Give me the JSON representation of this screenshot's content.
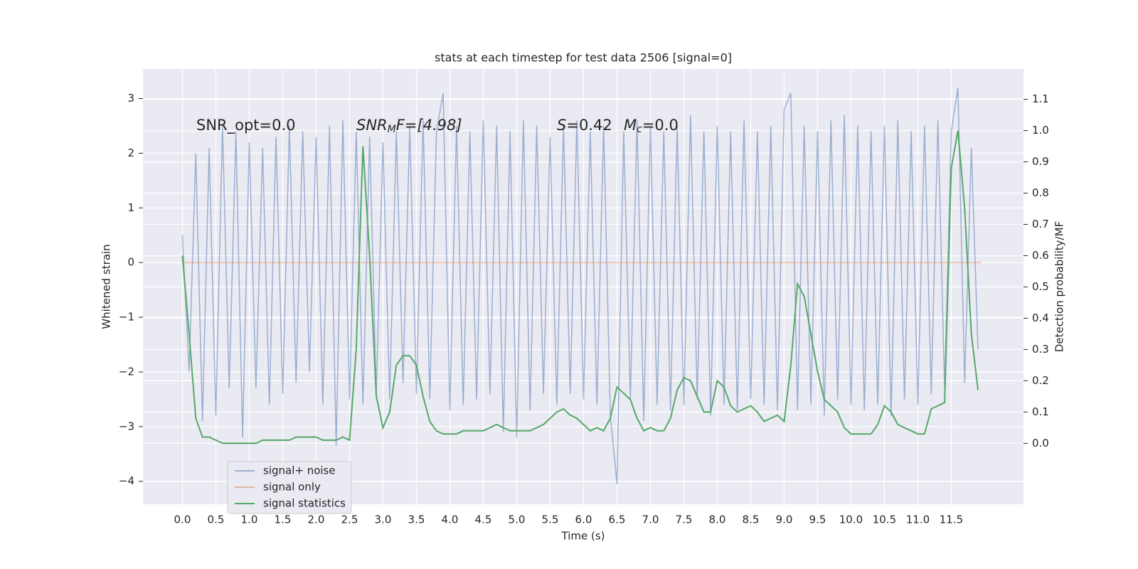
{
  "chart_data": {
    "type": "line",
    "title": "stats at each timestep for test data 2506 [signal=0]",
    "x_label": "Time (s)",
    "y_label": "Whitened strain",
    "y2_label": "Detection probability/MF",
    "annotations": [
      {
        "text": "SNR_opt=0.0"
      },
      {
        "main": "SNR",
        "sub": "M",
        "tail": "F=[4.98]"
      },
      {
        "main": "S",
        "tail": "=0.42"
      },
      {
        "main": "M",
        "sub": "c",
        "tail": "=0.0"
      }
    ],
    "grid": true,
    "legend": "lower left",
    "xlim": [
      -0.59,
      12.58
    ],
    "ylim": [
      -4.42,
      3.54
    ],
    "y2lim": [
      -0.195,
      1.197
    ],
    "xticks": [
      {
        "value": 0,
        "label": "0.0"
      },
      0.5,
      {
        "value": 1,
        "label": "1.0"
      },
      1.5,
      {
        "value": 2,
        "label": "2.0"
      },
      2.5,
      {
        "value": 3,
        "label": "3.0"
      },
      3.5,
      {
        "value": 4,
        "label": "4.0"
      },
      4.5,
      {
        "value": 5,
        "label": "5.0"
      },
      5.5,
      {
        "value": 6,
        "label": "6.0"
      },
      6.5,
      {
        "value": 7,
        "label": "7.0"
      },
      7.5,
      {
        "value": 8,
        "label": "8.0"
      },
      8.5,
      {
        "value": 9,
        "label": "9.0"
      },
      9.5,
      {
        "value": 10,
        "label": "10.0"
      },
      10.5,
      {
        "value": 11,
        "label": "11.0"
      },
      11.5
    ],
    "yticks": [
      {
        "value": -4,
        "label": "−4"
      },
      {
        "value": -3,
        "label": "−3"
      },
      {
        "value": -2,
        "label": "−2"
      },
      {
        "value": -1,
        "label": "−1"
      },
      0,
      1,
      2,
      3
    ],
    "y2ticks": [
      {
        "value": 0,
        "label": "0.0"
      },
      0.1,
      0.2,
      0.3,
      0.4,
      0.5,
      0.6,
      0.7,
      0.8,
      0.9,
      {
        "value": 1,
        "label": "1.0"
      },
      1.1
    ],
    "x": [
      0.0,
      0.1,
      0.2,
      0.3,
      0.4,
      0.5,
      0.6,
      0.7,
      0.8,
      0.9,
      1.0,
      1.1,
      1.2,
      1.3,
      1.4,
      1.5,
      1.6,
      1.7,
      1.8,
      1.9,
      2.0,
      2.1,
      2.2,
      2.3,
      2.4,
      2.5,
      2.6,
      2.7,
      2.8,
      2.9,
      3.0,
      3.1,
      3.2,
      3.3,
      3.4,
      3.5,
      3.6,
      3.7,
      3.8,
      3.9,
      4.0,
      4.1,
      4.2,
      4.3,
      4.4,
      4.5,
      4.6,
      4.7,
      4.8,
      4.9,
      5.0,
      5.1,
      5.2,
      5.3,
      5.4,
      5.5,
      5.6,
      5.7,
      5.8,
      5.9,
      6.0,
      6.1,
      6.2,
      6.3,
      6.4,
      6.5,
      6.6,
      6.7,
      6.8,
      6.9,
      7.0,
      7.1,
      7.2,
      7.3,
      7.4,
      7.5,
      7.6,
      7.7,
      7.8,
      7.9,
      8.0,
      8.1,
      8.2,
      8.3,
      8.4,
      8.5,
      8.6,
      8.7,
      8.8,
      8.9,
      9.0,
      9.1,
      9.2,
      9.3,
      9.4,
      9.5,
      9.6,
      9.7,
      9.8,
      9.9,
      10.0,
      10.1,
      10.2,
      10.3,
      10.4,
      10.5,
      10.6,
      10.7,
      10.8,
      10.9,
      11.0,
      11.1,
      11.2,
      11.3,
      11.4,
      11.5,
      11.6,
      11.7,
      11.8,
      11.9
    ],
    "series": [
      {
        "name": "signal+ noise",
        "color": "#4c72b0",
        "opacity": 0.5,
        "values": [
          0.5,
          -2.0,
          2.0,
          -2.9,
          2.1,
          -2.8,
          2.5,
          -2.3,
          2.4,
          -3.2,
          2.2,
          -2.3,
          2.1,
          -2.6,
          2.3,
          -2.4,
          2.5,
          -2.2,
          2.4,
          -2.0,
          2.3,
          -2.6,
          2.5,
          -3.35,
          2.6,
          -2.5,
          2.4,
          -2.6,
          2.3,
          -2.4,
          2.2,
          -2.5,
          2.4,
          -2.2,
          2.5,
          -2.4,
          2.6,
          -2.5,
          2.4,
          3.1,
          -2.7,
          2.5,
          -2.6,
          2.4,
          -2.5,
          2.6,
          -2.4,
          2.5,
          -3.1,
          2.4,
          -3.2,
          2.6,
          -2.7,
          2.5,
          -2.4,
          2.3,
          -2.6,
          2.5,
          -2.4,
          2.6,
          -2.5,
          2.4,
          -2.6,
          2.5,
          -2.8,
          -4.05,
          2.4,
          -2.5,
          2.6,
          -2.9,
          2.5,
          -2.6,
          2.4,
          -2.7,
          2.5,
          -2.6,
          2.7,
          -2.5,
          2.4,
          -2.8,
          2.5,
          -2.6,
          2.4,
          -2.7,
          2.6,
          -2.5,
          2.4,
          -2.6,
          2.5,
          -2.7,
          2.8,
          3.1,
          -2.7,
          2.5,
          -2.6,
          2.4,
          -2.8,
          2.6,
          -2.5,
          2.7,
          -2.6,
          2.5,
          -2.7,
          2.4,
          -2.6,
          2.5,
          -2.8,
          2.6,
          -2.5,
          2.4,
          -2.6,
          2.5,
          -2.4,
          2.6,
          -2.3,
          2.4,
          3.2,
          -2.2,
          2.1,
          -1.6
        ]
      },
      {
        "name": "signal only",
        "color": "#dd8452",
        "opacity": 0.5,
        "x": [
          0.0,
          11.95
        ],
        "values": [
          0,
          0
        ]
      },
      {
        "name": "signal statistics",
        "color": "#55a868",
        "opacity": 1,
        "axis": "y2",
        "values": [
          0.6,
          0.35,
          0.08,
          0.02,
          0.02,
          0.01,
          0.0,
          0.0,
          0.0,
          0.0,
          0.0,
          0.0,
          0.01,
          0.01,
          0.01,
          0.01,
          0.01,
          0.02,
          0.02,
          0.02,
          0.02,
          0.01,
          0.01,
          0.01,
          0.02,
          0.01,
          0.3,
          0.95,
          0.6,
          0.15,
          0.05,
          0.1,
          0.25,
          0.28,
          0.28,
          0.25,
          0.15,
          0.07,
          0.04,
          0.03,
          0.03,
          0.03,
          0.04,
          0.04,
          0.04,
          0.04,
          0.05,
          0.06,
          0.05,
          0.04,
          0.04,
          0.04,
          0.04,
          0.05,
          0.06,
          0.08,
          0.1,
          0.11,
          0.09,
          0.08,
          0.06,
          0.04,
          0.05,
          0.04,
          0.08,
          0.18,
          0.16,
          0.14,
          0.08,
          0.04,
          0.05,
          0.04,
          0.04,
          0.08,
          0.17,
          0.21,
          0.2,
          0.15,
          0.1,
          0.1,
          0.2,
          0.18,
          0.12,
          0.1,
          0.11,
          0.12,
          0.1,
          0.07,
          0.08,
          0.09,
          0.07,
          0.25,
          0.51,
          0.47,
          0.35,
          0.23,
          0.14,
          0.12,
          0.1,
          0.05,
          0.03,
          0.03,
          0.03,
          0.03,
          0.06,
          0.12,
          0.1,
          0.06,
          0.05,
          0.04,
          0.03,
          0.03,
          0.11,
          0.12,
          0.13,
          0.88,
          1.0,
          0.75,
          0.35,
          0.17
        ]
      }
    ]
  }
}
